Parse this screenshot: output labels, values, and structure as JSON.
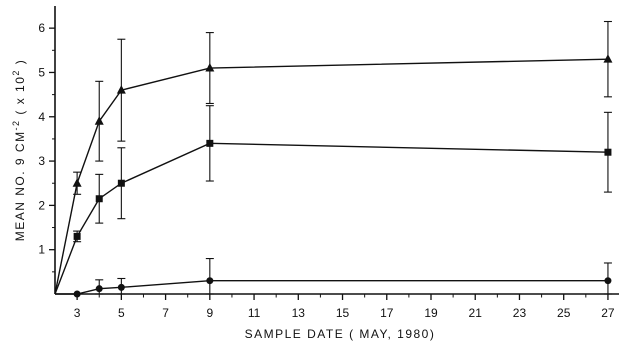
{
  "chart_data": {
    "type": "line",
    "title": "",
    "xlabel": "SAMPLE DATE  ( MAY, 1980)",
    "ylabel_parts": [
      "MEAN NO. 9 CM",
      "-2",
      " ( x 10",
      "2",
      " )"
    ],
    "xlim": [
      2,
      27.5
    ],
    "ylim": [
      0,
      6.5
    ],
    "x_ticks": [
      3,
      5,
      7,
      9,
      11,
      13,
      15,
      17,
      19,
      21,
      23,
      25,
      27
    ],
    "x_minor_ticks": [
      4,
      6,
      8,
      10,
      12,
      14,
      16,
      18,
      20,
      22,
      24,
      26
    ],
    "y_ticks": [
      1,
      2,
      3,
      4,
      5,
      6
    ],
    "y_minor_ticks": [
      0.5,
      1.5,
      2.5,
      3.5,
      4.5,
      5.5
    ],
    "grid": false,
    "legend": "none",
    "series": [
      {
        "marker": "triangle",
        "color": "#111111",
        "points": [
          {
            "x": 2,
            "y": 0,
            "err": 0
          },
          {
            "x": 3,
            "y": 2.5,
            "err": 0.25
          },
          {
            "x": 4,
            "y": 3.9,
            "err": 0.9
          },
          {
            "x": 5,
            "y": 4.6,
            "err": 1.15
          },
          {
            "x": 9,
            "y": 5.1,
            "err": 0.8
          },
          {
            "x": 27,
            "y": 5.3,
            "err": 0.85
          }
        ]
      },
      {
        "marker": "square",
        "color": "#111111",
        "points": [
          {
            "x": 2,
            "y": 0,
            "err": 0
          },
          {
            "x": 3,
            "y": 1.3,
            "err": 0.12
          },
          {
            "x": 4,
            "y": 2.15,
            "err": 0.55
          },
          {
            "x": 5,
            "y": 2.5,
            "err": 0.8
          },
          {
            "x": 9,
            "y": 3.4,
            "err": 0.85
          },
          {
            "x": 27,
            "y": 3.2,
            "err": 0.9
          }
        ]
      },
      {
        "marker": "circle",
        "color": "#111111",
        "points": [
          {
            "x": 2,
            "y": 0,
            "err": 0
          },
          {
            "x": 3,
            "y": 0,
            "err": 0
          },
          {
            "x": 4,
            "y": 0.12,
            "err": 0.2
          },
          {
            "x": 5,
            "y": 0.15,
            "err": 0.2
          },
          {
            "x": 9,
            "y": 0.3,
            "err": 0.5
          },
          {
            "x": 27,
            "y": 0.3,
            "err": 0.4
          }
        ]
      }
    ]
  }
}
